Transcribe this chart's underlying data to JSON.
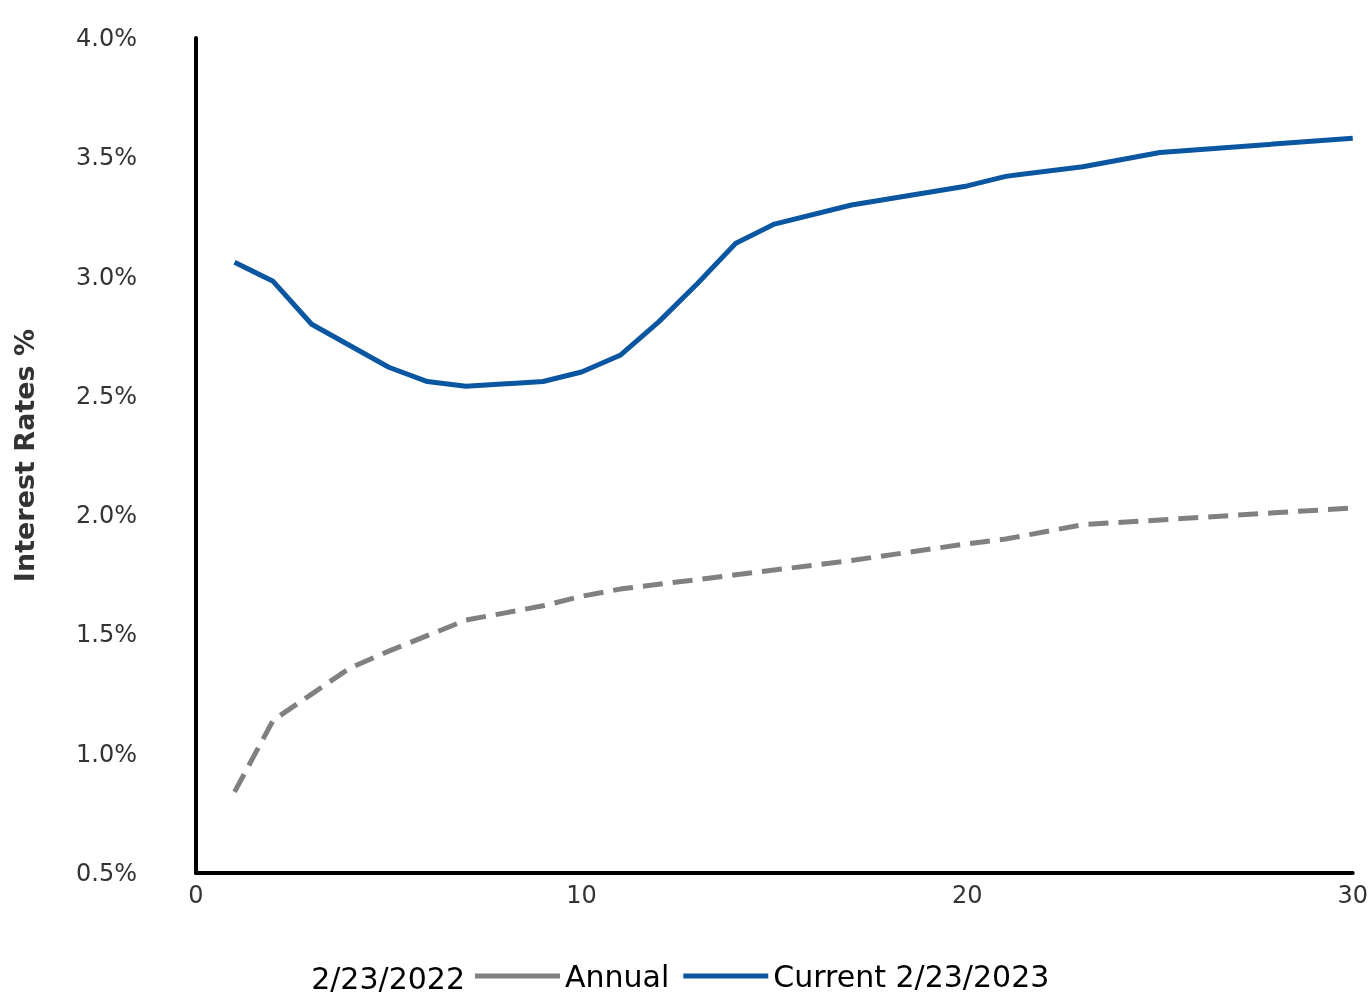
{
  "chart_data": {
    "type": "line",
    "ylabel": "Interest Rates %",
    "legend_title": "2/23/2022",
    "legend": "bottom",
    "grid": false,
    "marker": "none",
    "xlim": [
      0,
      30
    ],
    "xticks": [
      0,
      10,
      20,
      30
    ],
    "ylim": [
      0.5,
      4.0
    ],
    "yticks": [
      {
        "value": 0.5,
        "label": "0.5%"
      },
      {
        "value": 1.0,
        "label": "1.0%"
      },
      {
        "value": 1.5,
        "label": "1.5%"
      },
      {
        "value": 2.0,
        "label": "2.0%"
      },
      {
        "value": 2.5,
        "label": "2.5%"
      },
      {
        "value": 3.0,
        "label": "3.0%"
      },
      {
        "value": 3.5,
        "label": "3.5%"
      },
      {
        "value": 4.0,
        "label": "4.0%"
      }
    ],
    "series": [
      {
        "name": "Annual",
        "color": "#808080",
        "line_style": "dashed",
        "x": [
          1,
          2,
          3,
          4,
          5,
          7,
          9,
          10,
          11,
          14,
          17,
          20,
          21,
          23,
          25,
          30
        ],
        "values": [
          0.84,
          1.14,
          1.25,
          1.36,
          1.43,
          1.56,
          1.62,
          1.66,
          1.69,
          1.75,
          1.81,
          1.88,
          1.9,
          1.96,
          1.98,
          2.03
        ]
      },
      {
        "name": "Current 2/23/2023",
        "color": "#0b56a0",
        "line_style": "solid",
        "x": [
          1,
          2,
          3,
          4,
          5,
          6,
          7,
          9,
          10,
          11,
          12,
          13,
          14,
          15,
          17,
          20,
          21,
          23,
          25,
          30
        ],
        "values": [
          3.06,
          2.98,
          2.8,
          2.71,
          2.62,
          2.56,
          2.54,
          2.56,
          2.6,
          2.67,
          2.81,
          2.97,
          3.14,
          3.22,
          3.3,
          3.38,
          3.42,
          3.46,
          3.52,
          3.58
        ]
      }
    ]
  }
}
